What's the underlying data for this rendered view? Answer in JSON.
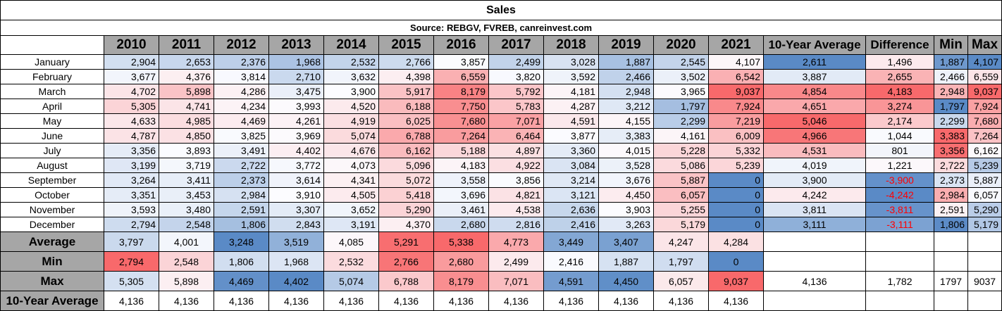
{
  "title": "Sales",
  "source": "Source: REBGV, FVREB, canreinvest.com",
  "headers": [
    "2010",
    "2011",
    "2012",
    "2013",
    "2014",
    "2015",
    "2016",
    "2017",
    "2018",
    "2019",
    "2020",
    "2021",
    "10-Year Average",
    "Difference",
    "Min",
    "Max"
  ],
  "months": [
    {
      "label": "January",
      "values": [
        "2,904",
        "2,653",
        "2,376",
        "1,968",
        "2,532",
        "2,766",
        "3,857",
        "2,499",
        "3,028",
        "1,887",
        "2,545",
        "4,107"
      ],
      "avg": "2,611",
      "diff": "1,496",
      "min": "1,887",
      "max": "4,107"
    },
    {
      "label": "February",
      "values": [
        "3,677",
        "4,376",
        "3,814",
        "2,710",
        "3,632",
        "4,398",
        "6,559",
        "3,820",
        "3,592",
        "2,466",
        "3,502",
        "6,542"
      ],
      "avg": "3,887",
      "diff": "2,655",
      "min": "2,466",
      "max": "6,559"
    },
    {
      "label": "March",
      "values": [
        "4,702",
        "5,898",
        "4,286",
        "3,475",
        "3,900",
        "5,917",
        "8,179",
        "5,792",
        "4,181",
        "2,948",
        "3,965",
        "9,037"
      ],
      "avg": "4,854",
      "diff": "4,183",
      "min": "2,948",
      "max": "9,037"
    },
    {
      "label": "April",
      "values": [
        "5,305",
        "4,741",
        "4,234",
        "3,993",
        "4,520",
        "6,188",
        "7,750",
        "5,783",
        "4,287",
        "3,212",
        "1,797",
        "7,924"
      ],
      "avg": "4,651",
      "diff": "3,274",
      "min": "1,797",
      "max": "7,924"
    },
    {
      "label": "May",
      "values": [
        "4,633",
        "4,985",
        "4,469",
        "4,261",
        "4,919",
        "6,025",
        "7,680",
        "7,071",
        "4,591",
        "4,155",
        "2,299",
        "7,219"
      ],
      "avg": "5,046",
      "diff": "2,174",
      "min": "2,299",
      "max": "7,680"
    },
    {
      "label": "June",
      "values": [
        "4,787",
        "4,850",
        "3,825",
        "3,969",
        "5,074",
        "6,788",
        "7,264",
        "6,464",
        "3,877",
        "3,383",
        "4,161",
        "6,009"
      ],
      "avg": "4,966",
      "diff": "1,044",
      "min": "3,383",
      "max": "7,264"
    },
    {
      "label": "July",
      "values": [
        "3,356",
        "3,893",
        "3,491",
        "4,402",
        "4,676",
        "6,162",
        "5,188",
        "4,897",
        "3,360",
        "4,015",
        "5,228",
        "5,332"
      ],
      "avg": "4,531",
      "diff": "801",
      "min": "3,356",
      "max": "6,162"
    },
    {
      "label": "August",
      "values": [
        "3,199",
        "3,719",
        "2,722",
        "3,772",
        "4,073",
        "5,096",
        "4,183",
        "4,922",
        "3,084",
        "3,528",
        "5,086",
        "5,239"
      ],
      "avg": "4,019",
      "diff": "1,221",
      "min": "2,722",
      "max": "5,239"
    },
    {
      "label": "September",
      "values": [
        "3,264",
        "3,411",
        "2,373",
        "3,614",
        "4,341",
        "5,072",
        "3,558",
        "3,856",
        "3,214",
        "3,676",
        "5,887",
        "0"
      ],
      "avg": "3,900",
      "diff": "-3,900",
      "min": "2,373",
      "max": "5,887"
    },
    {
      "label": "October",
      "values": [
        "3,351",
        "3,453",
        "2,984",
        "3,910",
        "4,505",
        "5,418",
        "3,696",
        "4,821",
        "3,121",
        "4,450",
        "6,057",
        "0"
      ],
      "avg": "4,242",
      "diff": "-4,242",
      "min": "2,984",
      "max": "6,057"
    },
    {
      "label": "November",
      "values": [
        "3,593",
        "3,480",
        "2,591",
        "3,307",
        "3,652",
        "5,290",
        "3,461",
        "4,538",
        "2,636",
        "3,903",
        "5,255",
        "0"
      ],
      "avg": "3,811",
      "diff": "-3,811",
      "min": "2,591",
      "max": "5,290"
    },
    {
      "label": "December",
      "values": [
        "2,794",
        "2,548",
        "1,806",
        "2,843",
        "3,191",
        "4,370",
        "2,680",
        "2,816",
        "2,416",
        "3,263",
        "5,179",
        "0"
      ],
      "avg": "3,111",
      "diff": "-3,111",
      "min": "1,806",
      "max": "5,179"
    }
  ],
  "summary": [
    {
      "label": "Average",
      "values": [
        "3,797",
        "4,001",
        "3,248",
        "3,519",
        "4,085",
        "5,291",
        "5,338",
        "4,773",
        "3,449",
        "3,407",
        "4,247",
        "4,284"
      ],
      "extra": [
        "",
        "",
        "",
        ""
      ]
    },
    {
      "label": "Min",
      "values": [
        "2,794",
        "2,548",
        "1,806",
        "1,968",
        "2,532",
        "2,766",
        "2,680",
        "2,499",
        "2,416",
        "1,887",
        "1,797",
        "0"
      ],
      "extra": [
        "",
        "",
        "",
        ""
      ]
    },
    {
      "label": "Max",
      "values": [
        "5,305",
        "5,898",
        "4,469",
        "4,402",
        "5,074",
        "6,788",
        "8,179",
        "7,071",
        "4,591",
        "4,450",
        "6,057",
        "9,037"
      ],
      "extra": [
        "4,136",
        "1,782",
        "1797",
        "9037"
      ]
    },
    {
      "label": "10-Year Average",
      "values": [
        "4,136",
        "4,136",
        "4,136",
        "4,136",
        "4,136",
        "4,136",
        "4,136",
        "4,136",
        "4,136",
        "4,136",
        "4,136",
        "4,136"
      ],
      "extra": [
        "",
        "",
        "",
        ""
      ]
    }
  ],
  "colors": {
    "low": "#5a8ac6",
    "mid": "#fcfcff",
    "high": "#f8696b",
    "header": "#a6a6a6",
    "negative": "#ff0000"
  }
}
